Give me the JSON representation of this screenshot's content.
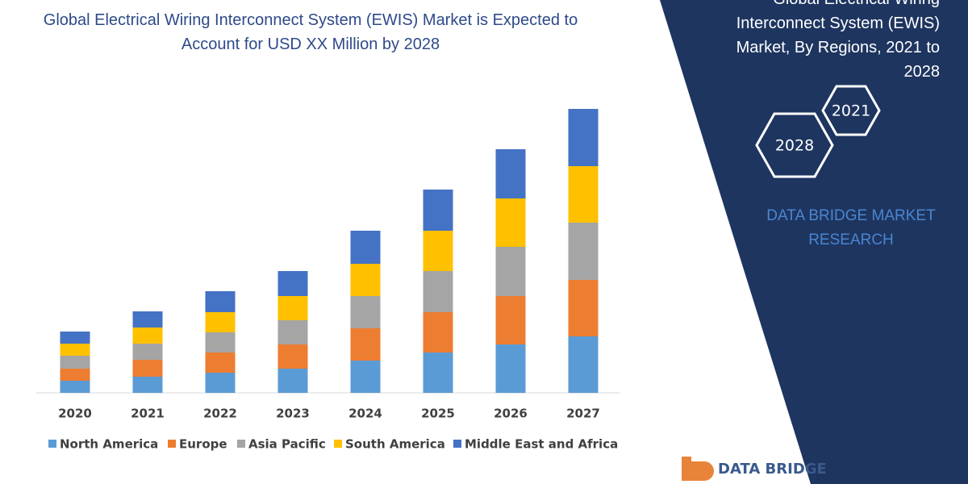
{
  "chart_data": {
    "type": "stacked_bar",
    "title": "Global Electrical Wiring Interconnect System (EWIS) Market is Expected to Account for USD XX Million by 2028",
    "categories": [
      "2020",
      "2021",
      "2022",
      "2023",
      "2024",
      "2025",
      "2026",
      "2027"
    ],
    "series": [
      {
        "name": "North America",
        "color": "#5b9bd5",
        "values": [
          15,
          20,
          25,
          30,
          40,
          50,
          60,
          70
        ]
      },
      {
        "name": "Europe",
        "color": "#ed7d31",
        "values": [
          15,
          21,
          25,
          30,
          40,
          50,
          60,
          70
        ]
      },
      {
        "name": "Asia Pacific",
        "color": "#a5a5a5",
        "values": [
          16,
          20,
          25,
          30,
          40,
          51,
          61,
          71
        ]
      },
      {
        "name": "South America",
        "color": "#ffc000",
        "values": [
          15,
          20,
          25,
          30,
          40,
          50,
          60,
          70
        ]
      },
      {
        "name": "Middle East and Africa",
        "color": "#4472c4",
        "values": [
          15,
          20,
          26,
          31,
          41,
          51,
          61,
          71
        ]
      }
    ]
  },
  "panel": {
    "title_lines": [
      "Global Electrical Wiring",
      "Interconnect System (EWIS)",
      "Market, By Regions, 2021 to",
      "2028"
    ],
    "hex_years": [
      "2021",
      "2028"
    ],
    "brand": "DATA BRIDGE MARKET RESEARCH",
    "logo": "DATA BRIDGE"
  }
}
